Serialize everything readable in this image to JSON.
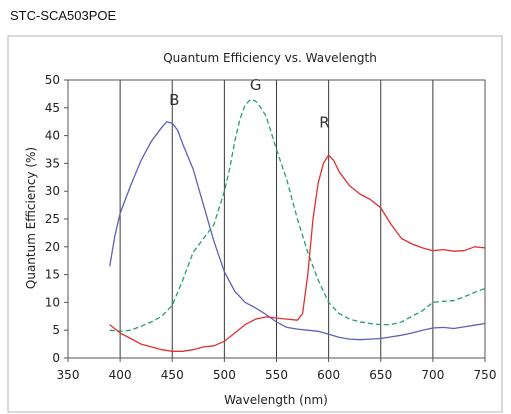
{
  "page": {
    "heading": "STC-SCA503POE"
  },
  "chart_data": {
    "type": "line",
    "title": "Quantum Efficiency vs. Wavelength",
    "xlabel": "Wavelength (nm)",
    "ylabel": "Quantum Efficiency (%)",
    "xlim": [
      350,
      750
    ],
    "ylim": [
      0,
      50
    ],
    "xticks": [
      "350",
      "400",
      "450",
      "500",
      "550",
      "600",
      "650",
      "700",
      "750"
    ],
    "yticks": [
      "0",
      "5",
      "10",
      "15",
      "20",
      "25",
      "30",
      "35",
      "40",
      "45",
      "50"
    ],
    "grid": "vertical",
    "series": [
      {
        "name": "B",
        "color": "#6060b8",
        "dash": "solid",
        "label_at": [
          452,
          45.5
        ],
        "x": [
          390,
          395,
          400,
          410,
          420,
          430,
          440,
          445,
          450,
          455,
          460,
          470,
          480,
          490,
          500,
          510,
          520,
          530,
          540,
          550,
          560,
          570,
          580,
          590,
          600,
          610,
          620,
          630,
          640,
          650,
          660,
          670,
          680,
          690,
          700,
          710,
          720,
          730,
          740,
          750
        ],
        "y": [
          16.5,
          22,
          26,
          31,
          35.5,
          39,
          41.5,
          42.5,
          42.2,
          41,
          38.5,
          34,
          27.5,
          21,
          15.5,
          12,
          10,
          9,
          7.8,
          6.5,
          5.5,
          5.2,
          5.0,
          4.8,
          4.3,
          3.7,
          3.4,
          3.3,
          3.4,
          3.5,
          3.8,
          4.1,
          4.5,
          5.0,
          5.4,
          5.5,
          5.3,
          5.6,
          5.9,
          6.2
        ]
      },
      {
        "name": "G",
        "color": "#20a070",
        "dash": "dashed",
        "label_at": [
          530,
          48.2
        ],
        "x": [
          390,
          400,
          410,
          420,
          430,
          440,
          450,
          460,
          470,
          480,
          490,
          500,
          505,
          510,
          515,
          520,
          525,
          530,
          535,
          540,
          550,
          560,
          570,
          580,
          590,
          600,
          610,
          620,
          630,
          640,
          650,
          660,
          670,
          680,
          690,
          700,
          710,
          720,
          730,
          740,
          750
        ],
        "y": [
          5.0,
          4.8,
          5.0,
          5.7,
          6.5,
          7.5,
          9.5,
          14,
          19,
          21.5,
          24,
          30,
          34,
          39,
          43,
          45.5,
          46.5,
          46.2,
          45,
          43.5,
          37.5,
          32,
          25,
          19,
          14,
          10,
          8,
          7,
          6.5,
          6.2,
          6.0,
          6.0,
          6.5,
          7.5,
          8.5,
          10,
          10.2,
          10.3,
          11,
          11.8,
          12.5
        ]
      },
      {
        "name": "R",
        "color": "#e03030",
        "dash": "solid",
        "label_at": [
          596,
          41.5
        ],
        "x": [
          390,
          400,
          410,
          420,
          430,
          440,
          450,
          460,
          470,
          480,
          490,
          500,
          510,
          520,
          530,
          540,
          550,
          560,
          570,
          575,
          580,
          585,
          590,
          595,
          600,
          605,
          610,
          620,
          630,
          640,
          650,
          660,
          670,
          680,
          690,
          700,
          710,
          720,
          730,
          740,
          750
        ],
        "y": [
          6.0,
          4.5,
          3.5,
          2.5,
          2.0,
          1.5,
          1.2,
          1.2,
          1.5,
          2.0,
          2.2,
          3.0,
          4.5,
          6.0,
          7.0,
          7.4,
          7.2,
          7.0,
          6.8,
          8,
          15,
          25,
          31.5,
          35,
          36.5,
          35.5,
          33.5,
          31,
          29.5,
          28.5,
          27,
          24,
          21.5,
          20.5,
          19.8,
          19.3,
          19.5,
          19.2,
          19.3,
          20.0,
          19.8
        ]
      }
    ]
  }
}
